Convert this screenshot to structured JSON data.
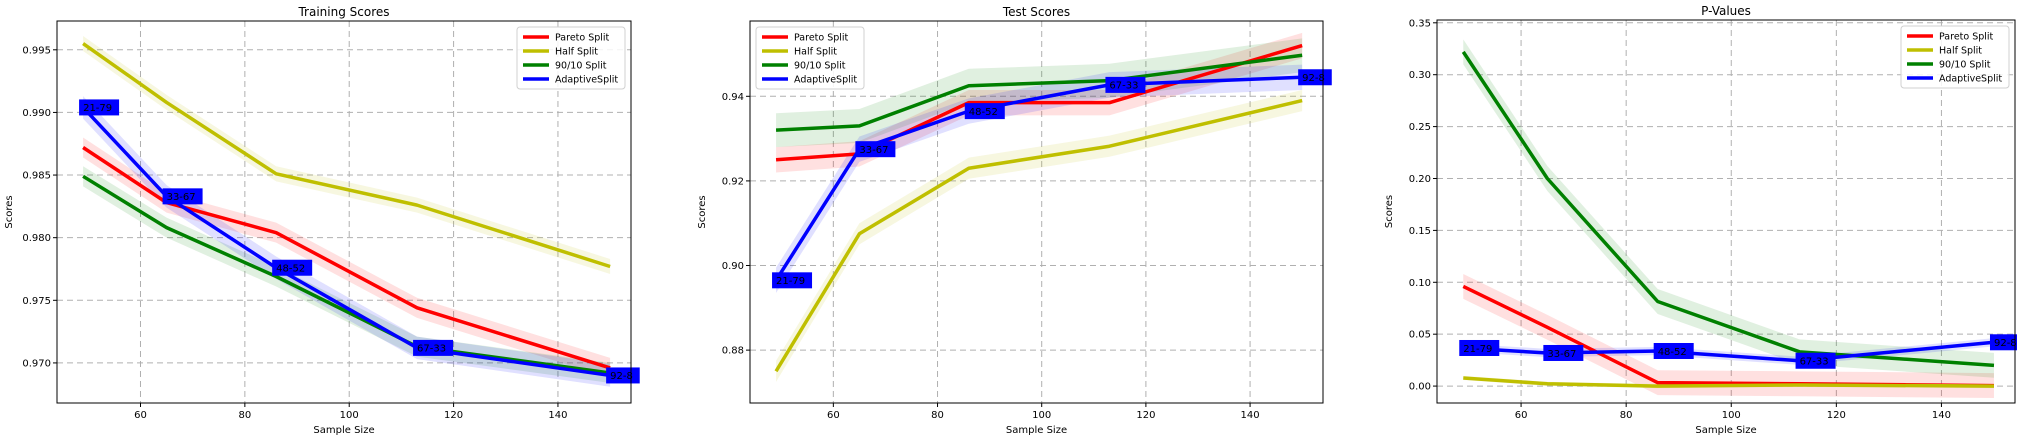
{
  "colors": {
    "Pareto Split": "#ff0000",
    "Half Split": "#bfbf00",
    "90/10 Split": "#008000",
    "AdaptiveSplit": "#0000ff"
  },
  "chart_data": [
    {
      "type": "line",
      "title": "Training Scores",
      "xlabel": "Sample Size",
      "ylabel": "Scores",
      "xlim": [
        44,
        154
      ],
      "ylim": [
        0.9668,
        0.9973
      ],
      "xticks": [
        60,
        80,
        100,
        120,
        140
      ],
      "yticks": [
        0.97,
        0.975,
        0.98,
        0.985,
        0.99,
        0.995
      ],
      "ytick_labels": [
        "0.970",
        "0.975",
        "0.980",
        "0.985",
        "0.990",
        "0.995"
      ],
      "grid": true,
      "legend_position": "top-right",
      "x": [
        49,
        65,
        86,
        113,
        150
      ],
      "series": [
        {
          "name": "Pareto Split",
          "values": [
            0.9872,
            0.9828,
            0.9804,
            0.9744,
            0.9696
          ],
          "band": 0.0008
        },
        {
          "name": "Half Split",
          "values": [
            0.9955,
            0.9908,
            0.9851,
            0.9826,
            0.9777
          ],
          "band": 0.0006
        },
        {
          "name": "90/10 Split",
          "values": [
            0.9849,
            0.9808,
            0.9769,
            0.9713,
            0.9692
          ],
          "band": 0.0008
        },
        {
          "name": "AdaptiveSplit",
          "values": [
            0.9904,
            0.9833,
            0.9776,
            0.9712,
            0.969
          ],
          "band": 0.0009
        }
      ],
      "annotations": [
        {
          "x": 49,
          "y": 0.9904,
          "text": "21-79"
        },
        {
          "x": 65,
          "y": 0.9833,
          "text": "33-67"
        },
        {
          "x": 86,
          "y": 0.9776,
          "text": "48-52"
        },
        {
          "x": 113,
          "y": 0.9712,
          "text": "67-33"
        },
        {
          "x": 150,
          "y": 0.969,
          "text": "92-8"
        }
      ]
    },
    {
      "type": "line",
      "title": "Test Scores",
      "xlabel": "Sample Size",
      "ylabel": "Scores",
      "xlim": [
        44,
        154
      ],
      "ylim": [
        0.8675,
        0.9578
      ],
      "xticks": [
        60,
        80,
        100,
        120,
        140
      ],
      "yticks": [
        0.88,
        0.9,
        0.92,
        0.94
      ],
      "ytick_labels": [
        "0.88",
        "0.90",
        "0.92",
        "0.94"
      ],
      "grid": true,
      "legend_position": "top-left",
      "x": [
        49,
        65,
        86,
        113,
        150
      ],
      "series": [
        {
          "name": "Pareto Split",
          "values": [
            0.925,
            0.9264,
            0.9385,
            0.9385,
            0.952
          ],
          "band": 0.003
        },
        {
          "name": "Half Split",
          "values": [
            0.875,
            0.9075,
            0.923,
            0.9282,
            0.939
          ],
          "band": 0.0025
        },
        {
          "name": "90/10 Split",
          "values": [
            0.932,
            0.933,
            0.9425,
            0.9437,
            0.9497
          ],
          "band": 0.004
        },
        {
          "name": "AdaptiveSplit",
          "values": [
            0.8965,
            0.9275,
            0.9365,
            0.9427,
            0.9445
          ],
          "band": 0.003
        }
      ],
      "annotations": [
        {
          "x": 49,
          "y": 0.8965,
          "text": "21-79"
        },
        {
          "x": 65,
          "y": 0.9275,
          "text": "33-67"
        },
        {
          "x": 86,
          "y": 0.9365,
          "text": "48-52"
        },
        {
          "x": 113,
          "y": 0.9427,
          "text": "67-33"
        },
        {
          "x": 150,
          "y": 0.9445,
          "text": "92-8"
        }
      ]
    },
    {
      "type": "line",
      "title": "P-Values",
      "xlabel": "Sample Size",
      "ylabel": "Scores",
      "xlim": [
        44,
        154
      ],
      "ylim": [
        -0.0163,
        0.3527
      ],
      "xticks": [
        60,
        80,
        100,
        120,
        140
      ],
      "yticks": [
        0.0,
        0.05,
        0.1,
        0.15,
        0.2,
        0.25,
        0.3,
        0.35
      ],
      "ytick_labels": [
        "0.00",
        "0.05",
        "0.10",
        "0.15",
        "0.20",
        "0.25",
        "0.30",
        "0.35"
      ],
      "grid": true,
      "legend_position": "top-right",
      "x": [
        49,
        65,
        86,
        113,
        150
      ],
      "series": [
        {
          "name": "Pareto Split",
          "values": [
            0.096,
            0.0566,
            0.0033,
            0.0022,
            0.0005
          ],
          "band": 0.012
        },
        {
          "name": "Half Split",
          "values": [
            0.0078,
            0.0022,
            0.0,
            0.0011,
            0.0
          ],
          "band": 0.002
        },
        {
          "name": "90/10 Split",
          "values": [
            0.322,
            0.2,
            0.0815,
            0.033,
            0.02
          ],
          "band": 0.012
        },
        {
          "name": "AdaptiveSplit",
          "values": [
            0.0367,
            0.0319,
            0.0338,
            0.0244,
            0.0422
          ],
          "band": 0.004
        }
      ],
      "annotations": [
        {
          "x": 49,
          "y": 0.0367,
          "text": "21-79"
        },
        {
          "x": 65,
          "y": 0.0319,
          "text": "33-67"
        },
        {
          "x": 86,
          "y": 0.0338,
          "text": "48-52"
        },
        {
          "x": 113,
          "y": 0.0244,
          "text": "67-33"
        },
        {
          "x": 150,
          "y": 0.0422,
          "text": "92-8"
        }
      ]
    }
  ]
}
